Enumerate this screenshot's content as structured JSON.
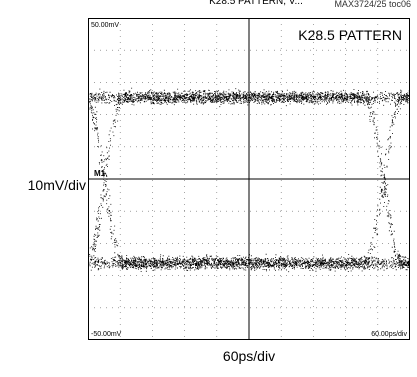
{
  "top_text": "K28.5 PATTERN, V...",
  "part_code": "MAX3724/25 toc06",
  "scope": {
    "pattern_label": "K28.5 PATTERN",
    "top_left_reading": "50.00mV",
    "bottom_left_reading": "-50.00mV",
    "bottom_right_reading": "60.00ps/div",
    "marker_label": "M1",
    "ylabel": "10mV/div",
    "xlabel": "60ps/div"
  },
  "chart_data": {
    "type": "scatter",
    "description": "eye diagram (oscilloscope persistence display)",
    "vertical_scale": "10mV/div",
    "horizontal_scale": "60ps/div",
    "ylim": [
      -50,
      50
    ],
    "xlim": [
      -300,
      300
    ],
    "grid": true,
    "divisions": {
      "x": 10,
      "y": 10
    },
    "levels_mV": {
      "high": 25.5,
      "low": -26
    },
    "crossings_ps": [
      -270,
      250
    ],
    "crossing_level_mV": 0,
    "dot_color": "#000000",
    "frame_color": "#000000",
    "grid_color": "#6b6b6b"
  }
}
